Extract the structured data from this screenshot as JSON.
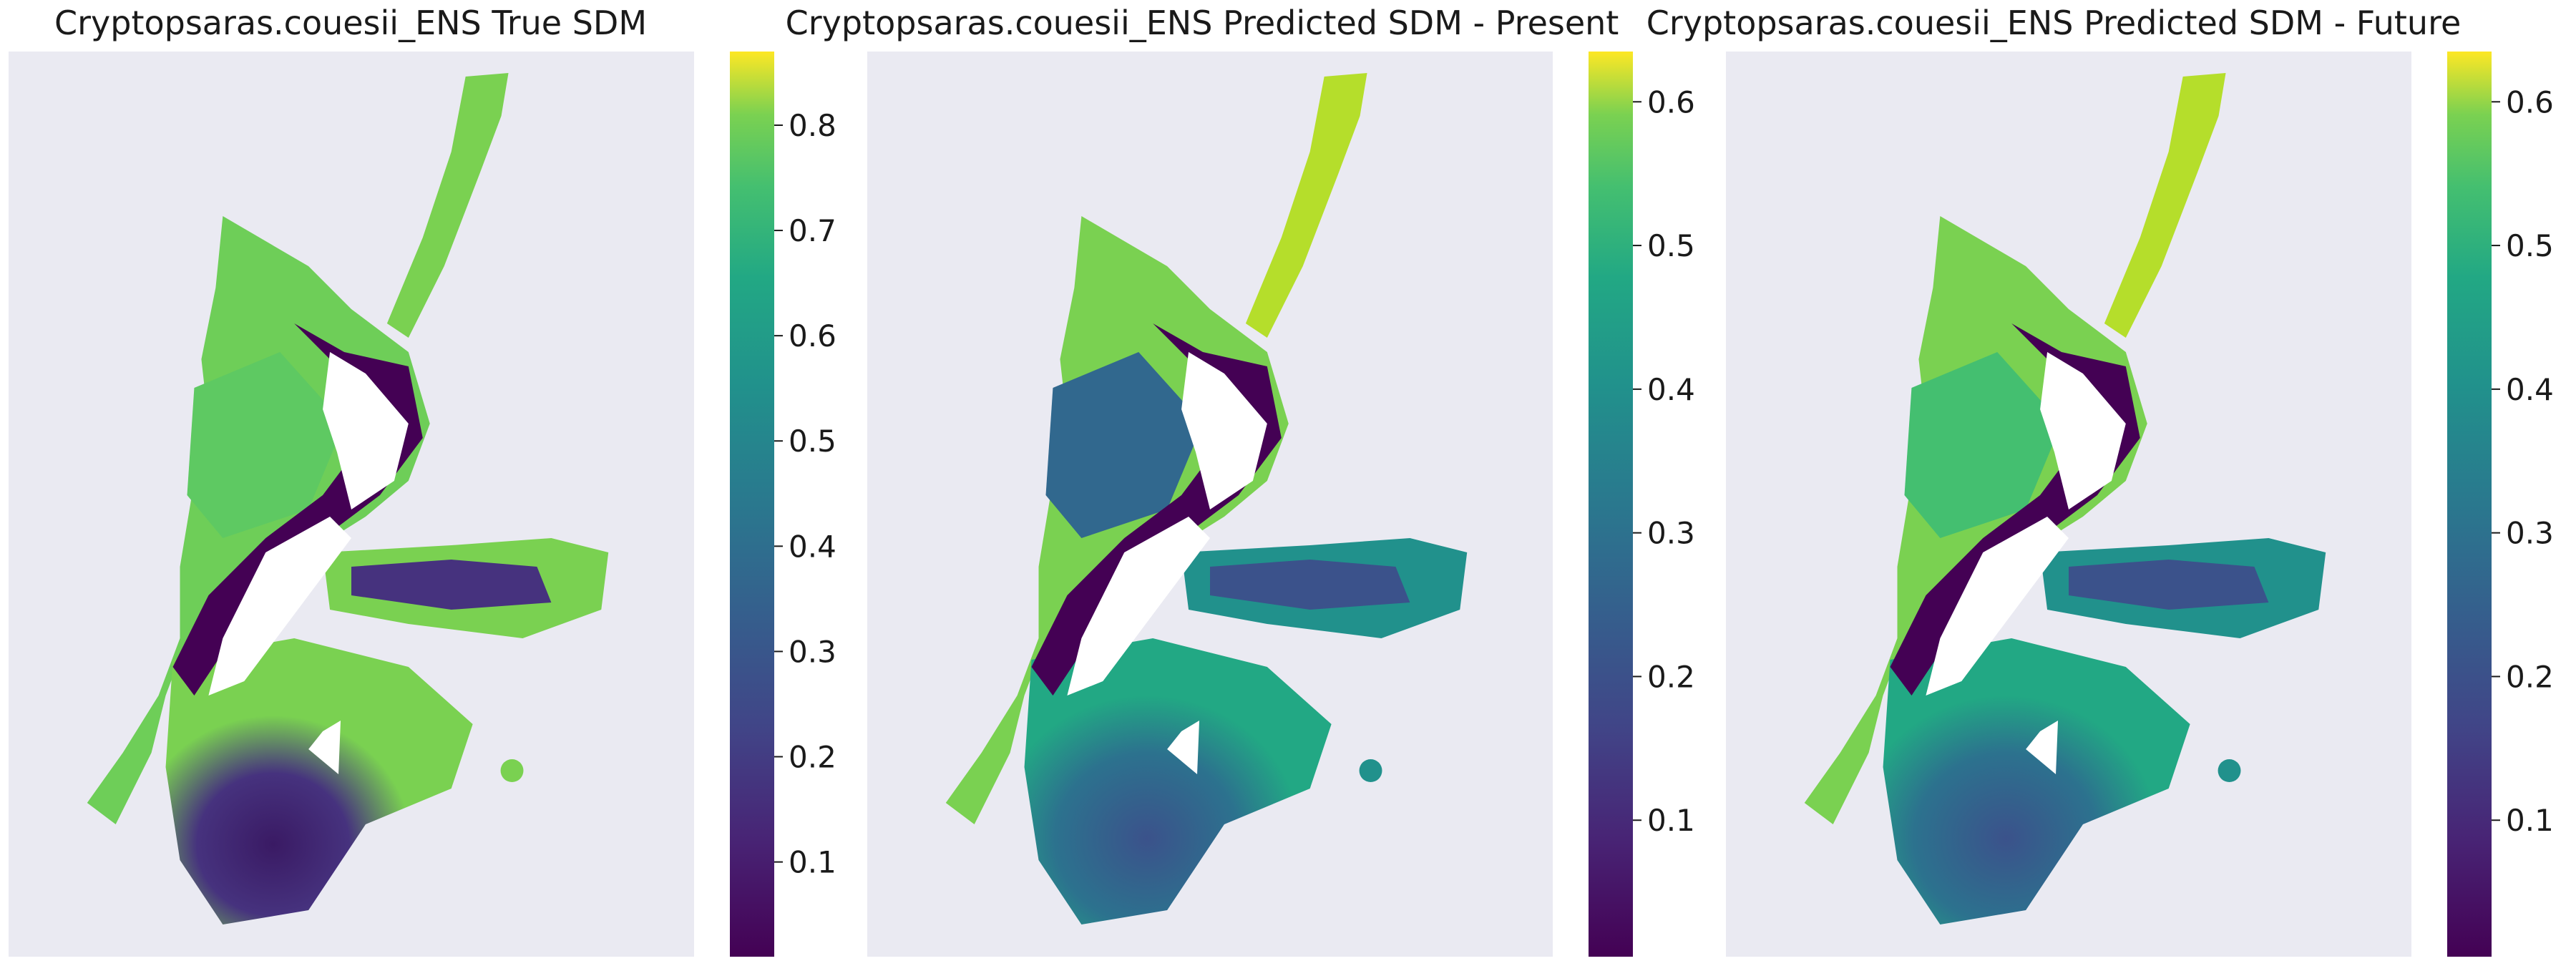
{
  "chart_data": [
    {
      "type": "heatmap",
      "title": "Cryptopsaras.couesii_ENS True SDM",
      "colormap": "viridis",
      "vmin": 0.01,
      "vmax": 0.87,
      "colorbar_ticks": [
        0.1,
        0.2,
        0.3,
        0.4,
        0.5,
        0.6,
        0.7,
        0.8
      ],
      "colorbar_tick_labels": [
        "0.1",
        "0.2",
        "0.3",
        "0.4",
        "0.5",
        "0.6",
        "0.7",
        "0.8"
      ],
      "background_color": "#eaeaf2",
      "grid": false
    },
    {
      "type": "heatmap",
      "title": "Cryptopsaras.couesii_ENS Predicted SDM - Present",
      "colormap": "viridis",
      "vmin": 0.005,
      "vmax": 0.635,
      "colorbar_ticks": [
        0.1,
        0.2,
        0.3,
        0.4,
        0.5,
        0.6
      ],
      "colorbar_tick_labels": [
        "0.1",
        "0.2",
        "0.3",
        "0.4",
        "0.5",
        "0.6"
      ],
      "background_color": "#eaeaf2",
      "grid": false
    },
    {
      "type": "heatmap",
      "title": "Cryptopsaras.couesii_ENS Predicted SDM - Future",
      "colormap": "viridis",
      "vmin": 0.005,
      "vmax": 0.635,
      "colorbar_ticks": [
        0.1,
        0.2,
        0.3,
        0.4,
        0.5,
        0.6
      ],
      "colorbar_tick_labels": [
        "0.1",
        "0.2",
        "0.3",
        "0.4",
        "0.5",
        "0.6"
      ],
      "background_color": "#eaeaf2",
      "grid": false
    }
  ]
}
